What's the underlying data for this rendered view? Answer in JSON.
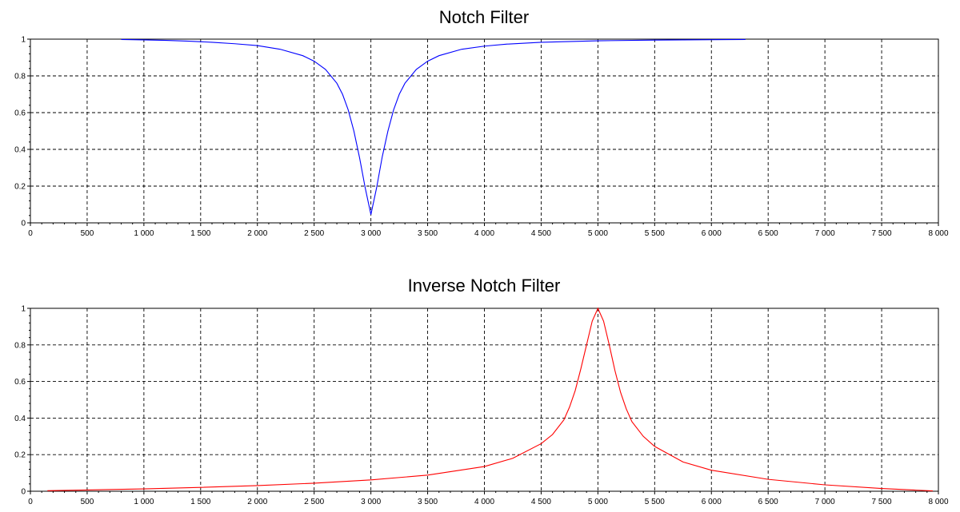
{
  "chart_data": [
    {
      "type": "line",
      "title": "Notch Filter",
      "xlabel": "",
      "ylabel": "",
      "xlim": [
        0,
        8000
      ],
      "ylim": [
        0,
        1
      ],
      "x_ticks": [
        0,
        500,
        1000,
        1500,
        2000,
        2500,
        3000,
        3500,
        4000,
        4500,
        5000,
        5500,
        6000,
        6500,
        7000,
        7500,
        8000
      ],
      "x_tick_labels": [
        "0",
        "500",
        "1 000",
        "1 500",
        "2 000",
        "2 500",
        "3 000",
        "3 500",
        "4 000",
        "4 500",
        "5 000",
        "5 500",
        "6 000",
        "6 500",
        "7 000",
        "7 500",
        "8 000"
      ],
      "y_ticks": [
        0,
        0.2,
        0.4,
        0.6,
        0.8,
        1
      ],
      "y_tick_labels": [
        "0",
        "0.2",
        "0.4",
        "0.6",
        "0.8",
        "1"
      ],
      "grid": true,
      "series": [
        {
          "color": "#0000ff",
          "x": [
            800,
            1000,
            1200,
            1400,
            1600,
            1800,
            2000,
            2200,
            2400,
            2500,
            2600,
            2700,
            2750,
            2800,
            2850,
            2900,
            2950,
            3000,
            3050,
            3100,
            3150,
            3200,
            3250,
            3300,
            3400,
            3500,
            3600,
            3800,
            4000,
            4200,
            4500,
            5000,
            5500,
            6000,
            6300
          ],
          "y": [
            0.998,
            0.996,
            0.993,
            0.989,
            0.983,
            0.975,
            0.965,
            0.945,
            0.91,
            0.88,
            0.835,
            0.76,
            0.7,
            0.615,
            0.5,
            0.355,
            0.19,
            0.045,
            0.19,
            0.36,
            0.5,
            0.615,
            0.7,
            0.76,
            0.835,
            0.88,
            0.91,
            0.945,
            0.962,
            0.973,
            0.983,
            0.991,
            0.995,
            0.997,
            0.998
          ]
        }
      ]
    },
    {
      "type": "line",
      "title": "Inverse Notch Filter",
      "xlabel": "",
      "ylabel": "",
      "xlim": [
        0,
        8000
      ],
      "ylim": [
        0,
        1
      ],
      "x_ticks": [
        0,
        500,
        1000,
        1500,
        2000,
        2500,
        3000,
        3500,
        4000,
        4500,
        5000,
        5500,
        6000,
        6500,
        7000,
        7500,
        8000
      ],
      "x_tick_labels": [
        "0",
        "500",
        "1 000",
        "1 500",
        "2 000",
        "2 500",
        "3 000",
        "3 500",
        "4 000",
        "4 500",
        "5 000",
        "5 500",
        "6 000",
        "6 500",
        "7 000",
        "7 500",
        "8 000"
      ],
      "y_ticks": [
        0,
        0.2,
        0.4,
        0.6,
        0.8,
        1
      ],
      "y_tick_labels": [
        "0",
        "0.2",
        "0.4",
        "0.6",
        "0.8",
        "1"
      ],
      "grid": true,
      "series": [
        {
          "color": "#ff0000",
          "x": [
            150,
            500,
            1000,
            1500,
            2000,
            2500,
            3000,
            3500,
            4000,
            4250,
            4500,
            4600,
            4700,
            4750,
            4800,
            4850,
            4900,
            4950,
            5000,
            5050,
            5100,
            5150,
            5200,
            5250,
            5300,
            5400,
            5500,
            5750,
            6000,
            6500,
            7000,
            7500,
            7800,
            7950
          ],
          "y": [
            0.003,
            0.007,
            0.013,
            0.021,
            0.031,
            0.044,
            0.062,
            0.088,
            0.135,
            0.18,
            0.26,
            0.31,
            0.39,
            0.46,
            0.55,
            0.67,
            0.8,
            0.93,
            1.0,
            0.93,
            0.8,
            0.66,
            0.54,
            0.45,
            0.38,
            0.3,
            0.245,
            0.16,
            0.115,
            0.065,
            0.035,
            0.015,
            0.006,
            0.002
          ]
        }
      ]
    }
  ]
}
